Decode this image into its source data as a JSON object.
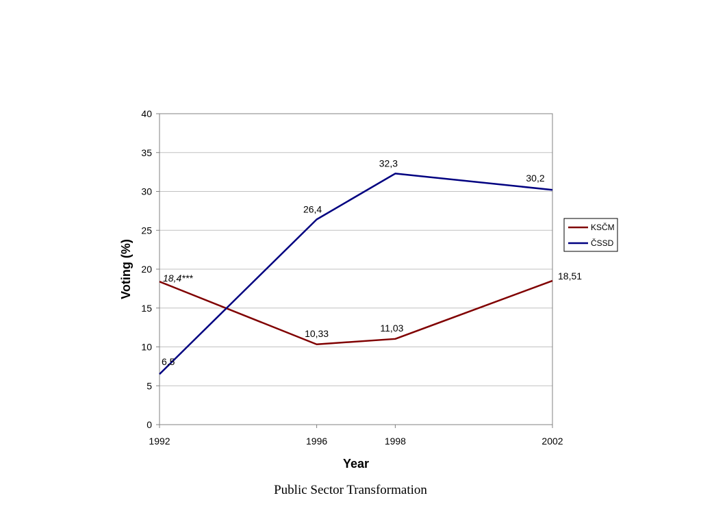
{
  "footer": {
    "caption": "Public Sector Transformation"
  },
  "chart_data": {
    "type": "line",
    "x": [
      1992,
      1996,
      1998,
      2002
    ],
    "xlabel": "Year",
    "ylabel": "Voting (%)",
    "ylim": [
      0,
      40
    ],
    "yticks": [
      0,
      5,
      10,
      15,
      20,
      25,
      30,
      35,
      40
    ],
    "grid": true,
    "legend_position": "right",
    "series": [
      {
        "name": "KSČM",
        "color": "#800000",
        "values": [
          18.4,
          10.33,
          11.03,
          18.51
        ],
        "labels": [
          "18,4***",
          "10,33",
          "11,03",
          "18,51"
        ]
      },
      {
        "name": "ČSSD",
        "color": "#000080",
        "values": [
          6.5,
          26.4,
          32.3,
          30.2
        ],
        "labels": [
          "6,5",
          "26,4",
          "32,3",
          "30,2"
        ]
      }
    ]
  }
}
